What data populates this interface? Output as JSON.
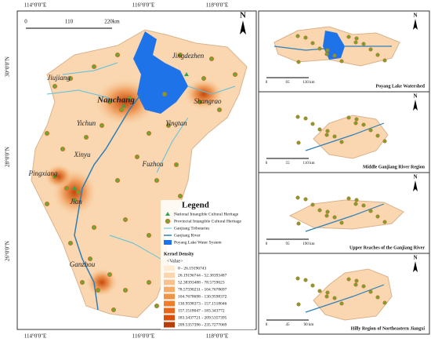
{
  "map": {
    "coordinates": {
      "top": [
        "114°0'0\"E",
        "116°0'0\"E",
        "118°0'0\"E"
      ],
      "bottom": [
        "114°0'0\"E",
        "116°0'0\"E",
        "118°0'0\"E"
      ],
      "left": [
        "30°0'0\"N",
        "28°0'0\"N",
        "26°0'0\"N"
      ]
    },
    "scale": [
      "0",
      "110",
      "220km"
    ],
    "north": "N",
    "cities": [
      "Jingdezhen",
      "Jiujiang",
      "Nanchang",
      "Shangrao",
      "Yingtan",
      "Yichun",
      "Xinyu",
      "Fuzhou",
      "Pingxiang",
      "Jian",
      "Ganzhou"
    ],
    "legend": {
      "title": "Legend",
      "items": [
        "National Intangible Cultural Heritage",
        "Provincial Intangible Cultural Heritage",
        "Ganjiang Tributaries",
        "Ganjiang River",
        "Poyang Lake Water System"
      ],
      "density_title": "Kernel Density",
      "density_value": "<Value>",
      "density_classes": [
        "0 - 26.19196743",
        "26.19196744 - 52.38393487",
        "52.38393488 - 78.5759023",
        "78.57590231 - 104.7678697",
        "104.7678698 - 130.9598372",
        "130.9598373 - 157.1518046",
        "157.1518047 - 183.343772",
        "183.3437721 - 209.5357395",
        "209.5357396 - 235.7277069"
      ]
    }
  },
  "insets": [
    {
      "title": "Poyang Lake Watershed",
      "scale": [
        "0",
        "65",
        "130 km"
      ],
      "north": "N"
    },
    {
      "title": "Middle Ganjiang River Region",
      "scale": [
        "0",
        "55",
        "110 km"
      ],
      "north": "N"
    },
    {
      "title": "Upper Reaches of the Ganjiang River",
      "scale": [
        "0",
        "95",
        "190 km"
      ],
      "north": "N"
    },
    {
      "title": "Hilly Region of Northeastern Jiangxi",
      "scale": [
        "0",
        "45",
        "90 km"
      ],
      "north": "N"
    }
  ]
}
